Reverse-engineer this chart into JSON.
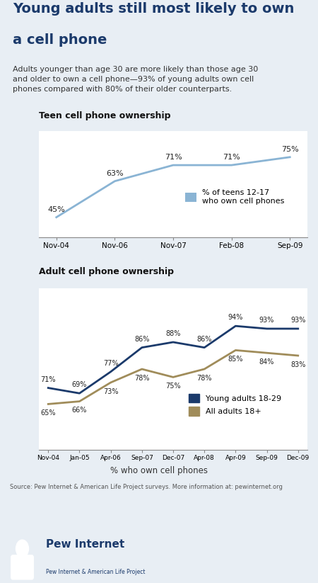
{
  "title_line1": "Young adults still most likely to own",
  "title_line2": "a cell phone",
  "subtitle": "Adults younger than age 30 are more likely than those age 30\nand older to own a cell phone—93% of young adults own cell\nphones compared with 80% of their older counterparts.",
  "title_color": "#1b3a6b",
  "background_color": "#e8eef4",
  "plot_bg": "#ffffff",
  "teen_title": "Teen cell phone ownership",
  "teen_x_labels": [
    "Nov-04",
    "Nov-06",
    "Nov-07",
    "Feb-08",
    "Sep-09"
  ],
  "teen_y": [
    45,
    63,
    71,
    71,
    75
  ],
  "teen_color": "#8ab4d4",
  "teen_legend": "% of teens 12-17\nwho own cell phones",
  "adult_title": "Adult cell phone ownership",
  "adult_x_labels": [
    "Nov-04",
    "Jan-05",
    "Apr-06",
    "Sep-07",
    "Dec-07",
    "Apr-08",
    "Apr-09",
    "Sep-09",
    "Dec-09"
  ],
  "adult_young_y": [
    71,
    69,
    77,
    86,
    88,
    86,
    94,
    93,
    93
  ],
  "adult_all_y": [
    65,
    66,
    73,
    78,
    75,
    78,
    85,
    84,
    83
  ],
  "adult_young_color": "#1b3a6b",
  "adult_all_color": "#a08c5a",
  "adult_young_legend": "Young adults 18-29",
  "adult_all_legend": "All adults 18+",
  "adult_xlabel": "% who own cell phones",
  "source_text": "Source: Pew Internet & American Life Project surveys. More information at: pewinternet.org",
  "logo_text_main": "Pew Internet",
  "logo_text_sub": "Pew Internet & American Life Project"
}
